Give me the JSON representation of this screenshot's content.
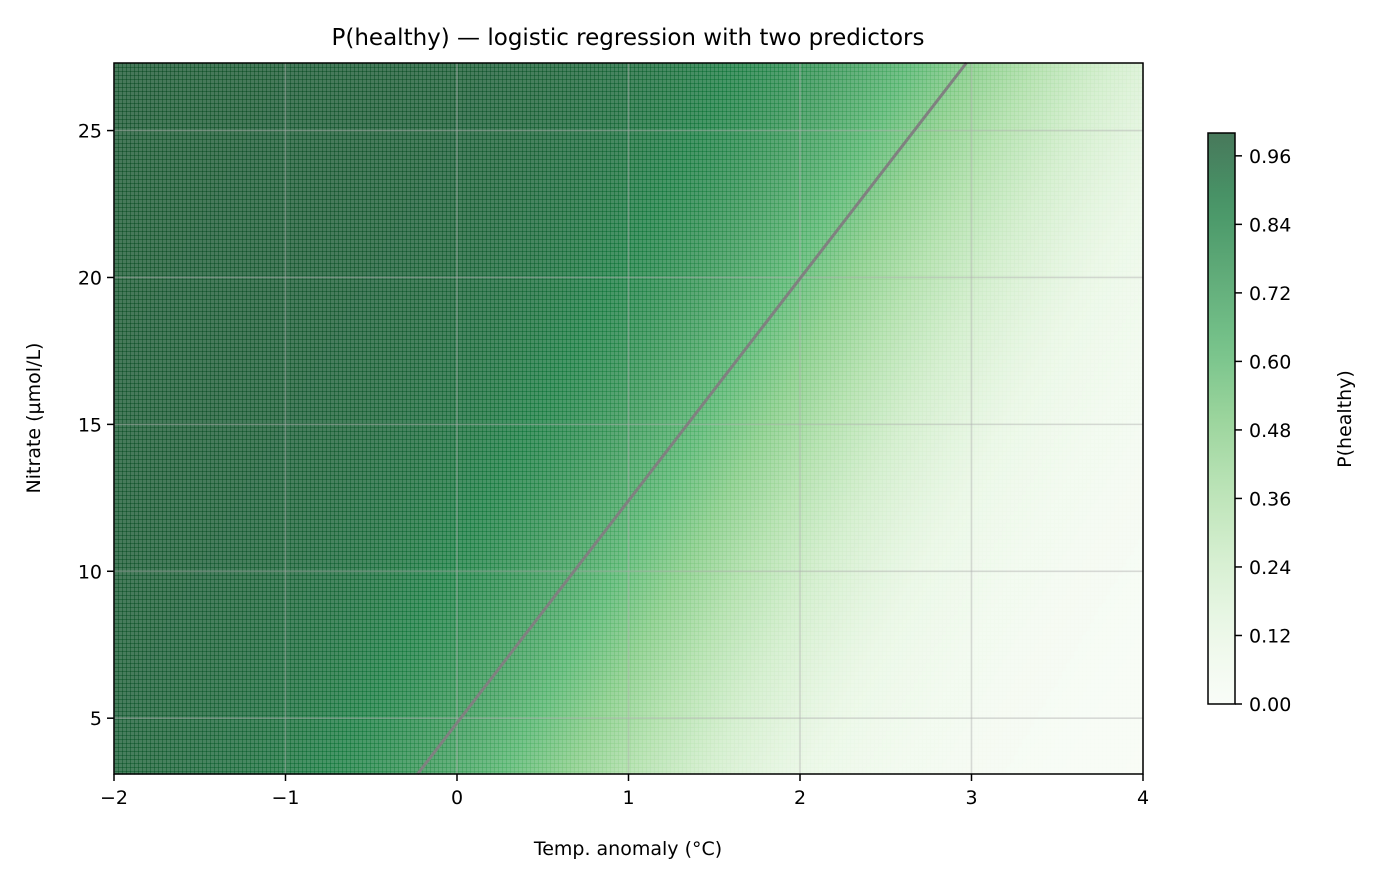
{
  "chart_data": {
    "type": "heatmap",
    "title": "P(healthy) — logistic regression with two predictors",
    "xlabel": "Temp. anomaly (°C)",
    "ylabel": "Nitrate (µmol/L)",
    "xlim": [
      -2,
      4
    ],
    "ylim": [
      3.1,
      27.3
    ],
    "xticks": [
      -2,
      -1,
      0,
      1,
      2,
      3,
      4
    ],
    "xtick_labels": [
      "−2",
      "−1",
      "0",
      "1",
      "2",
      "3",
      "4"
    ],
    "yticks": [
      5,
      10,
      15,
      20,
      25
    ],
    "ytick_labels": [
      "5",
      "10",
      "15",
      "20",
      "25"
    ],
    "grid": true,
    "colormap": "Greens",
    "colorbar": {
      "label": "P(healthy)",
      "range": [
        0,
        1
      ],
      "ticks": [
        0.0,
        0.12,
        0.24,
        0.36,
        0.48,
        0.6,
        0.72,
        0.84,
        0.96
      ],
      "tick_labels": [
        "0.00",
        "0.12",
        "0.24",
        "0.36",
        "0.48",
        "0.60",
        "0.72",
        "0.84",
        "0.96"
      ]
    },
    "model": {
      "form": "logistic",
      "decision_boundary_p": 0.5,
      "decision_boundary_points": [
        [
          -0.23,
          3.1
        ],
        [
          2.97,
          27.3
        ]
      ],
      "probability_samples": [
        {
          "x": -2.0,
          "y": 3.1,
          "p": 0.99
        },
        {
          "x": 0.0,
          "y": 27.3,
          "p": 0.99
        },
        {
          "x": -0.23,
          "y": 3.1,
          "p": 0.5
        },
        {
          "x": 2.97,
          "y": 27.3,
          "p": 0.5
        },
        {
          "x": 1.2,
          "y": 6.0,
          "p": 0.27
        },
        {
          "x": 4.0,
          "y": 27.3,
          "p": 0.17
        },
        {
          "x": 4.0,
          "y": 3.1,
          "p": 0.02
        }
      ]
    },
    "boundary_line_color": "#808080",
    "colors": {
      "cmap_stops": [
        "#f7fcf5",
        "#e5f5e0",
        "#c7e9c0",
        "#a1d99b",
        "#74c476",
        "#41ab5d",
        "#238b45",
        "#006d2c",
        "#00441b"
      ]
    }
  }
}
